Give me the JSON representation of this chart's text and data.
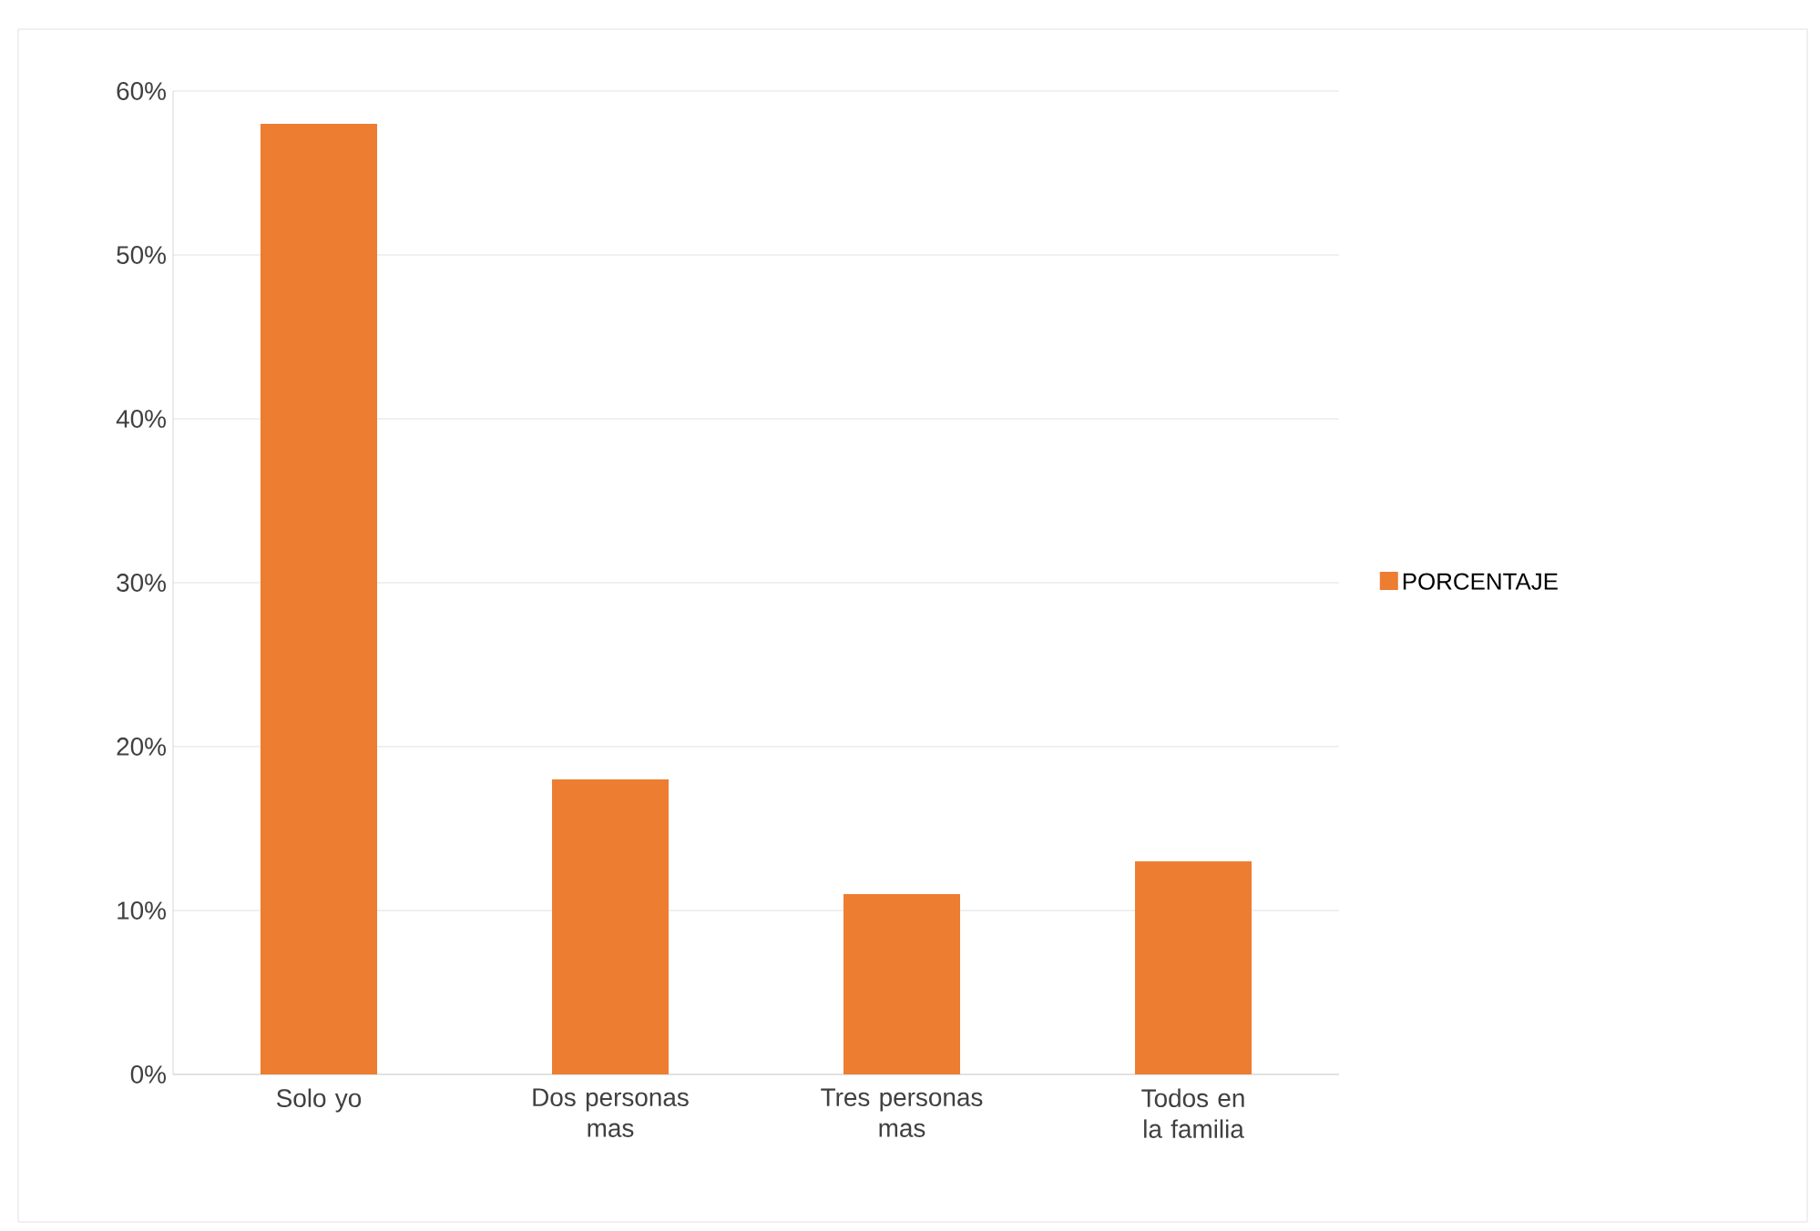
{
  "chart_data": {
    "type": "bar",
    "categories": [
      "Solo yo",
      "Dos personas mas",
      "Tres personas mas",
      "Todos en la familia"
    ],
    "series": [
      {
        "name": "PORCENTAJE",
        "color": "#ed7d31",
        "values": [
          58,
          18,
          11,
          13
        ]
      }
    ],
    "ylim": [
      0,
      60
    ],
    "yticks": [
      {
        "value": 0,
        "label": "0%"
      },
      {
        "value": 10,
        "label": "10%"
      },
      {
        "value": 20,
        "label": "20%"
      },
      {
        "value": 30,
        "label": "30%"
      },
      {
        "value": 40,
        "label": "40%"
      },
      {
        "value": 50,
        "label": "50%"
      },
      {
        "value": 60,
        "label": "60%"
      }
    ],
    "grid": "y",
    "legend": "right"
  }
}
